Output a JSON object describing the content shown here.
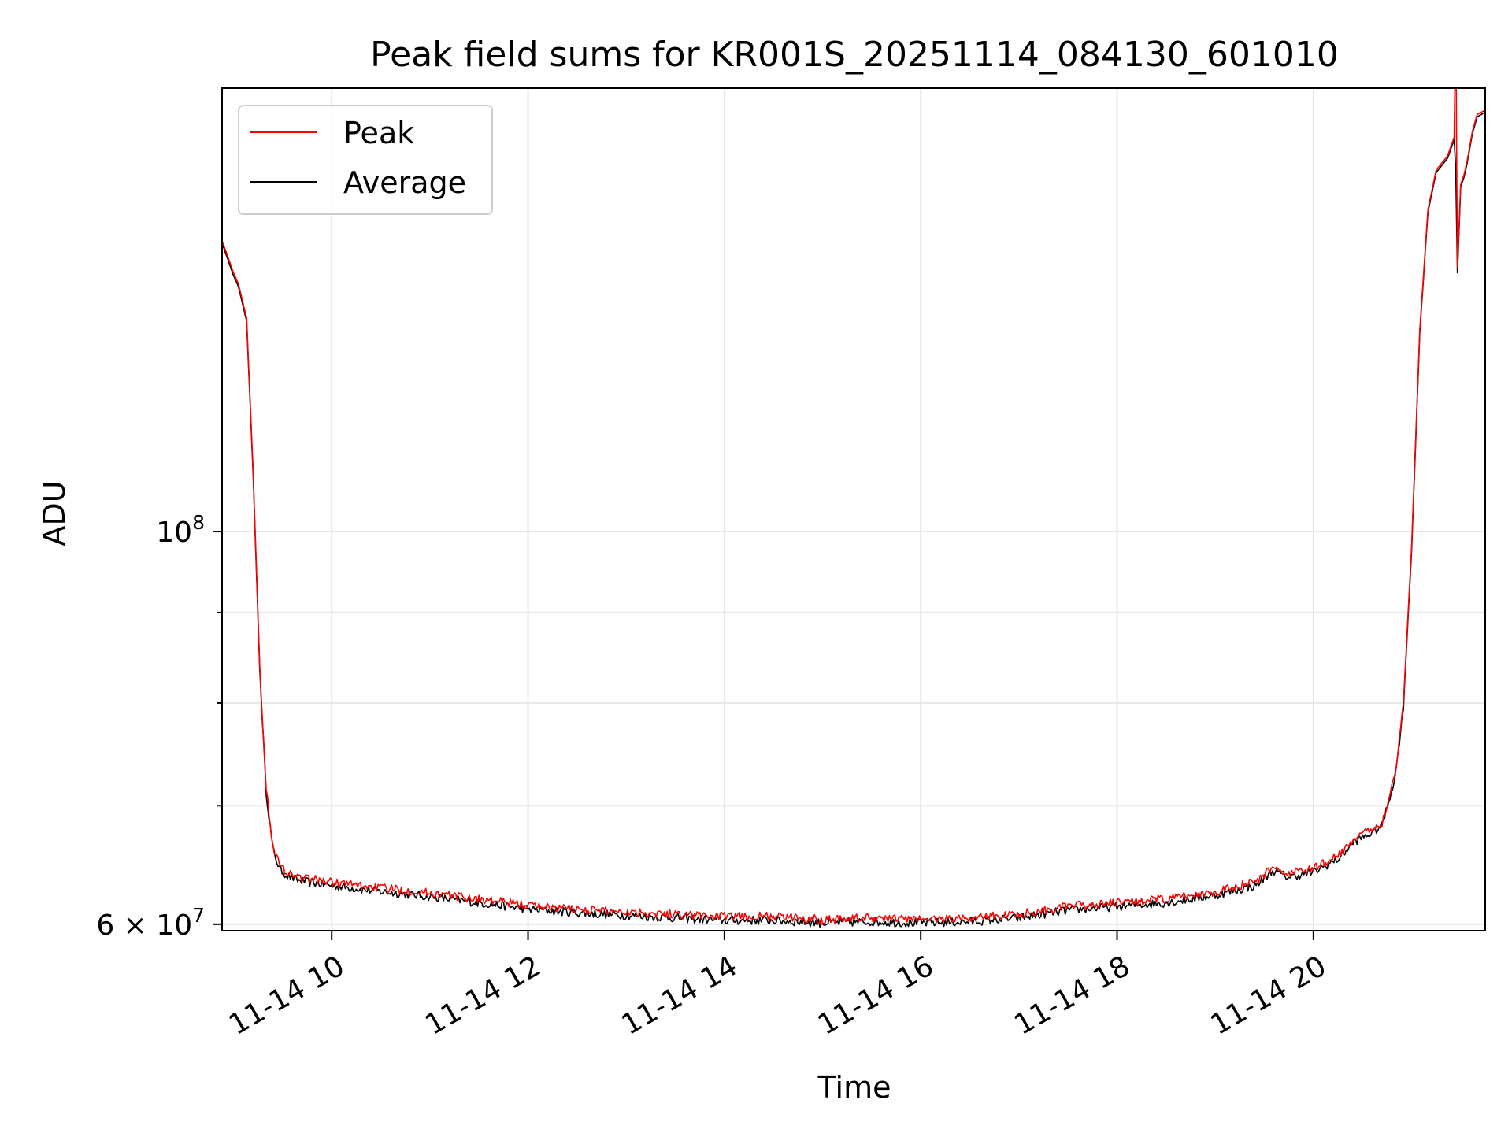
{
  "chart_data": {
    "type": "line",
    "title": "Peak field sums for KR001S_20251114_084130_601010",
    "xlabel": "Time",
    "ylabel": "ADU",
    "x_axis": {
      "type": "datetime",
      "range": [
        "2025-11-14 08:53",
        "2025-11-14 21:45"
      ],
      "tick_values": [
        "2025-11-14 10:00",
        "2025-11-14 12:00",
        "2025-11-14 14:00",
        "2025-11-14 16:00",
        "2025-11-14 18:00",
        "2025-11-14 20:00"
      ],
      "tick_labels": [
        "11-14 10",
        "11-14 12",
        "11-14 14",
        "11-14 16",
        "11-14 18",
        "11-14 20"
      ],
      "tick_rotation_deg": 30
    },
    "y_axis": {
      "scale": "log",
      "range": [
        59500000,
        178000000
      ],
      "major_ticks": [
        {
          "value": 60000000,
          "label_base": "6 × 10",
          "label_exp": "7"
        },
        {
          "value": 100000000,
          "label_base": "10",
          "label_exp": "8"
        }
      ],
      "minor_ticks": [
        70000000,
        80000000,
        90000000
      ]
    },
    "grid": true,
    "legend": {
      "position": "upper-left",
      "entries": [
        "Peak",
        "Average"
      ]
    },
    "series": [
      {
        "name": "Peak",
        "color": "#ff0000",
        "noise_amplitude": 350000,
        "x": [
          "2025-11-14 08:53",
          "2025-11-14 09:00",
          "2025-11-14 09:03",
          "2025-11-14 09:08",
          "2025-11-14 09:12",
          "2025-11-14 09:16",
          "2025-11-14 09:20",
          "2025-11-14 09:24",
          "2025-11-14 09:28",
          "2025-11-14 09:33",
          "2025-11-14 09:40",
          "2025-11-14 10:00",
          "2025-11-14 10:30",
          "2025-11-14 11:00",
          "2025-11-14 11:30",
          "2025-11-14 12:00",
          "2025-11-14 12:30",
          "2025-11-14 13:00",
          "2025-11-14 13:30",
          "2025-11-14 14:00",
          "2025-11-14 14:30",
          "2025-11-14 15:00",
          "2025-11-14 15:30",
          "2025-11-14 16:00",
          "2025-11-14 16:30",
          "2025-11-14 17:00",
          "2025-11-14 17:30",
          "2025-11-14 18:00",
          "2025-11-14 18:30",
          "2025-11-14 19:00",
          "2025-11-14 19:25",
          "2025-11-14 19:35",
          "2025-11-14 19:45",
          "2025-11-14 20:00",
          "2025-11-14 20:15",
          "2025-11-14 20:25",
          "2025-11-14 20:35",
          "2025-11-14 20:42",
          "2025-11-14 20:50",
          "2025-11-14 20:55",
          "2025-11-14 21:00",
          "2025-11-14 21:05",
          "2025-11-14 21:10",
          "2025-11-14 21:15",
          "2025-11-14 21:22",
          "2025-11-14 21:26",
          "2025-11-14 21:27",
          "2025-11-14 21:28",
          "2025-11-14 21:30",
          "2025-11-14 21:32",
          "2025-11-14 21:34",
          "2025-11-14 21:37",
          "2025-11-14 21:40",
          "2025-11-14 21:45"
        ],
        "y": [
          146000000,
          140000000,
          138000000,
          132000000,
          108000000,
          84000000,
          71500000,
          66500000,
          64800000,
          64200000,
          63800000,
          63400000,
          62900000,
          62500000,
          62000000,
          61500000,
          61200000,
          61000000,
          60800000,
          60600000,
          60600000,
          60400000,
          60500000,
          60400000,
          60500000,
          60800000,
          61400000,
          61700000,
          62000000,
          62600000,
          63400000,
          64600000,
          64100000,
          64500000,
          65600000,
          67100000,
          67800000,
          68500000,
          73000000,
          80000000,
          98000000,
          130000000,
          152000000,
          160000000,
          163000000,
          167000000,
          195000000,
          141000000,
          157000000,
          159000000,
          162000000,
          168000000,
          172000000,
          173000000
        ]
      },
      {
        "name": "Average",
        "color": "#000000",
        "noise_amplitude": 350000,
        "x": [
          "2025-11-14 08:53",
          "2025-11-14 09:00",
          "2025-11-14 09:03",
          "2025-11-14 09:08",
          "2025-11-14 09:12",
          "2025-11-14 09:16",
          "2025-11-14 09:20",
          "2025-11-14 09:24",
          "2025-11-14 09:28",
          "2025-11-14 09:33",
          "2025-11-14 09:40",
          "2025-11-14 10:00",
          "2025-11-14 10:30",
          "2025-11-14 11:00",
          "2025-11-14 11:30",
          "2025-11-14 12:00",
          "2025-11-14 12:30",
          "2025-11-14 13:00",
          "2025-11-14 13:30",
          "2025-11-14 14:00",
          "2025-11-14 14:30",
          "2025-11-14 15:00",
          "2025-11-14 15:30",
          "2025-11-14 16:00",
          "2025-11-14 16:30",
          "2025-11-14 17:00",
          "2025-11-14 17:30",
          "2025-11-14 18:00",
          "2025-11-14 18:30",
          "2025-11-14 19:00",
          "2025-11-14 19:25",
          "2025-11-14 19:35",
          "2025-11-14 19:45",
          "2025-11-14 20:00",
          "2025-11-14 20:15",
          "2025-11-14 20:25",
          "2025-11-14 20:35",
          "2025-11-14 20:42",
          "2025-11-14 20:50",
          "2025-11-14 20:55",
          "2025-11-14 21:00",
          "2025-11-14 21:05",
          "2025-11-14 21:10",
          "2025-11-14 21:15",
          "2025-11-14 21:22",
          "2025-11-14 21:26",
          "2025-11-14 21:27",
          "2025-11-14 21:28",
          "2025-11-14 21:30",
          "2025-11-14 21:32",
          "2025-11-14 21:34",
          "2025-11-14 21:37",
          "2025-11-14 21:40",
          "2025-11-14 21:45"
        ],
        "y": [
          145500000,
          139500000,
          137500000,
          131500000,
          107500000,
          83600000,
          71200000,
          66200000,
          64500000,
          63900000,
          63500000,
          63100000,
          62600000,
          62200000,
          61700000,
          61200000,
          60900000,
          60700000,
          60500000,
          60300000,
          60300000,
          60100000,
          60200000,
          60100000,
          60200000,
          60500000,
          61100000,
          61400000,
          61700000,
          62300000,
          63100000,
          64300000,
          63800000,
          64200000,
          65300000,
          66800000,
          67500000,
          68200000,
          72700000,
          79600000,
          97500000,
          129500000,
          151500000,
          159500000,
          162500000,
          166500000,
          160000000,
          140000000,
          156500000,
          158500000,
          161500000,
          167500000,
          171500000,
          172500000
        ]
      }
    ]
  }
}
